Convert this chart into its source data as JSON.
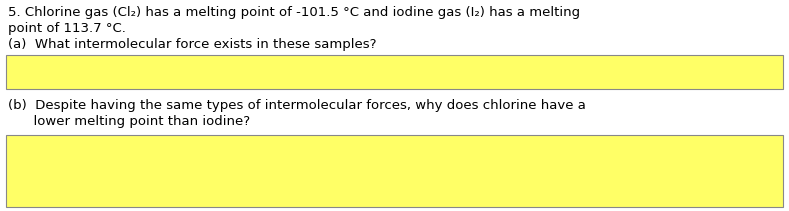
{
  "background_color": "#ffffff",
  "text_color": "#000000",
  "box_color": "#ffff66",
  "box_border_color": "#888888",
  "line1": "5. Chlorine gas (Cl₂) has a melting point of -101.5 °C and iodine gas (I₂) has a melting",
  "line2": "point of 113.7 °C.",
  "line3": "(a)  What intermolecular force exists in these samples?",
  "line4": "(b)  Despite having the same types of intermolecular forces, why does chlorine have a",
  "line5": "      lower melting point than iodine?",
  "font_size": 9.5,
  "fig_width": 7.89,
  "fig_height": 2.11,
  "dpi": 100
}
